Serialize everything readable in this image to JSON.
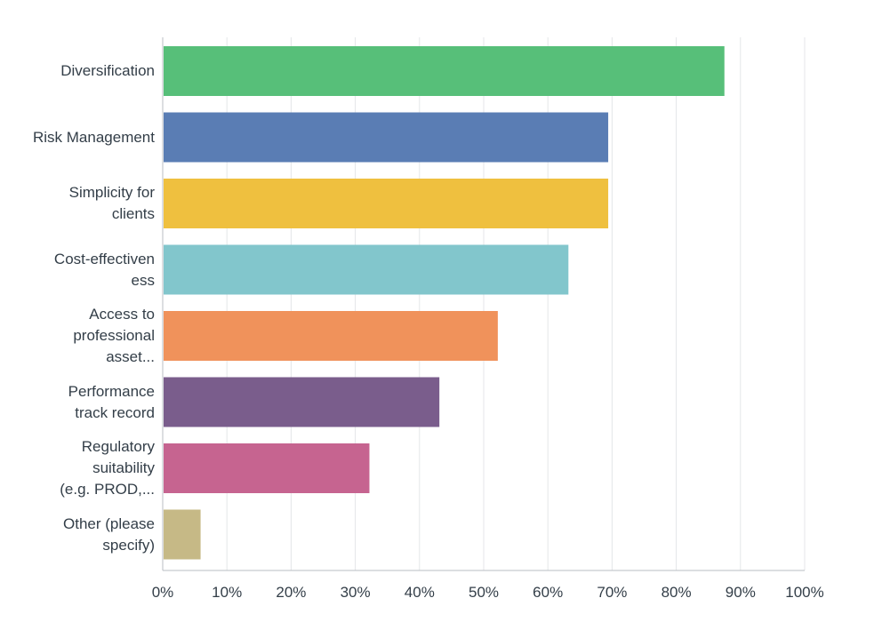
{
  "chart_data": {
    "type": "bar",
    "orientation": "horizontal",
    "categories": [
      [
        "Diversification"
      ],
      [
        "Risk Management"
      ],
      [
        "Simplicity for",
        "clients"
      ],
      [
        "Cost-effectiven",
        "ess"
      ],
      [
        "Access to",
        "professional",
        "asset..."
      ],
      [
        "Performance",
        "track record"
      ],
      [
        "Regulatory",
        "suitability",
        "(e.g. PROD,..."
      ],
      [
        "Other (please",
        "specify)"
      ]
    ],
    "values": [
      87.5,
      69.4,
      69.4,
      63.2,
      52.2,
      43.1,
      32.2,
      5.9
    ],
    "colors": [
      "#57bf79",
      "#5a7db4",
      "#efc03f",
      "#82c6cc",
      "#f0925b",
      "#7a5d8c",
      "#c66490",
      "#c6b986"
    ],
    "x_ticks": [
      "0%",
      "10%",
      "20%",
      "30%",
      "40%",
      "50%",
      "60%",
      "70%",
      "80%",
      "90%",
      "100%"
    ],
    "xlim": [
      0,
      100
    ],
    "grid": true,
    "title": "",
    "xlabel": "",
    "ylabel": ""
  }
}
